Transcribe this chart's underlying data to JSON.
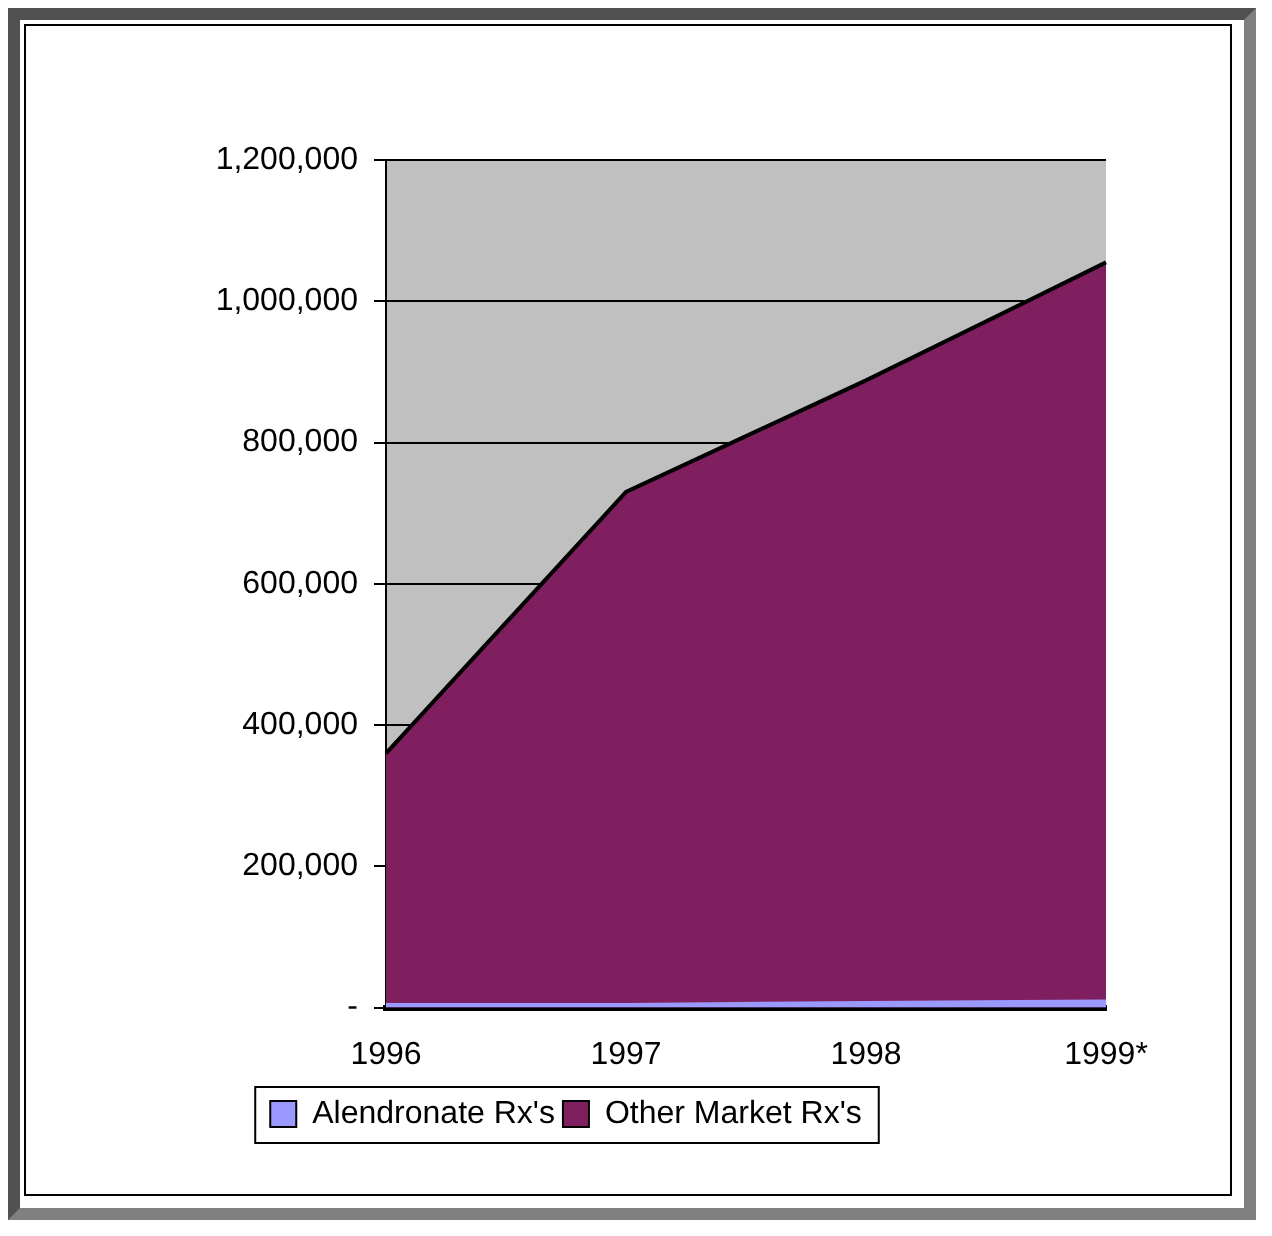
{
  "chart_data": {
    "type": "area",
    "stacked": true,
    "categories": [
      "1996",
      "1997",
      "1998",
      "1999*"
    ],
    "series": [
      {
        "name": "Alendronate Rx's",
        "color": "#9999ff",
        "values": [
          5000,
          5000,
          8000,
          10000
        ]
      },
      {
        "name": "Other Market Rx's",
        "color": "#7f1f5f",
        "values": [
          355000,
          725000,
          880000,
          1045000
        ]
      }
    ],
    "ylim": [
      0,
      1200000
    ],
    "yticks": [
      {
        "value": 0,
        "label": "-"
      },
      {
        "value": 200000,
        "label": "200,000"
      },
      {
        "value": 400000,
        "label": "400,000"
      },
      {
        "value": 600000,
        "label": "600,000"
      },
      {
        "value": 800000,
        "label": "800,000"
      },
      {
        "value": 1000000,
        "label": "1,000,000"
      },
      {
        "value": 1200000,
        "label": "1,200,000"
      }
    ],
    "grid": "y",
    "legend": "bottom"
  }
}
